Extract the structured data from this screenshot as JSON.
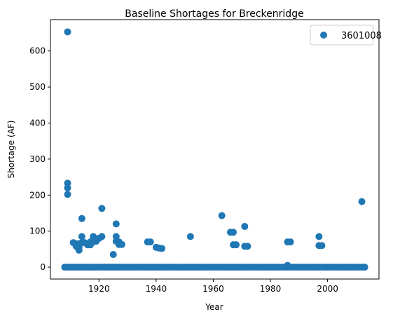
{
  "chart_data": {
    "type": "scatter",
    "title": "Baseline Shortages for Breckenridge",
    "xlabel": "Year",
    "ylabel": "Shortage (AF)",
    "xlim": [
      1903,
      2018
    ],
    "ylim": [
      -33,
      687
    ],
    "xticks": [
      1920,
      1940,
      1960,
      1980,
      2000
    ],
    "yticks": [
      0,
      100,
      200,
      300,
      400,
      500,
      600
    ],
    "grid": false,
    "legend_position": "top-right",
    "series": [
      {
        "name": "3601008",
        "color": "#1f77b4",
        "zero_year_range": [
          1908,
          2013
        ],
        "points": [
          [
            1909,
            653
          ],
          [
            1909,
            233
          ],
          [
            1909,
            220
          ],
          [
            1909,
            202
          ],
          [
            1911,
            68
          ],
          [
            1912,
            65
          ],
          [
            1912,
            58
          ],
          [
            1913,
            65
          ],
          [
            1913,
            47
          ],
          [
            1913,
            55
          ],
          [
            1914,
            135
          ],
          [
            1914,
            85
          ],
          [
            1914,
            68
          ],
          [
            1915,
            68
          ],
          [
            1916,
            62
          ],
          [
            1917,
            62
          ],
          [
            1917,
            70
          ],
          [
            1918,
            85
          ],
          [
            1918,
            70
          ],
          [
            1919,
            72
          ],
          [
            1920,
            80
          ],
          [
            1921,
            85
          ],
          [
            1921,
            163
          ],
          [
            1925,
            35
          ],
          [
            1926,
            120
          ],
          [
            1926,
            85
          ],
          [
            1926,
            72
          ],
          [
            1927,
            70
          ],
          [
            1927,
            63
          ],
          [
            1928,
            63
          ],
          [
            1937,
            70
          ],
          [
            1938,
            70
          ],
          [
            1940,
            55
          ],
          [
            1941,
            53
          ],
          [
            1942,
            52
          ],
          [
            1952,
            85
          ],
          [
            1963,
            143
          ],
          [
            1966,
            97
          ],
          [
            1967,
            97
          ],
          [
            1967,
            62
          ],
          [
            1968,
            62
          ],
          [
            1971,
            113
          ],
          [
            1971,
            58
          ],
          [
            1972,
            58
          ],
          [
            1986,
            70
          ],
          [
            1986,
            5
          ],
          [
            1987,
            70
          ],
          [
            1997,
            85
          ],
          [
            1997,
            60
          ],
          [
            1998,
            60
          ],
          [
            2012,
            182
          ]
        ]
      }
    ]
  }
}
